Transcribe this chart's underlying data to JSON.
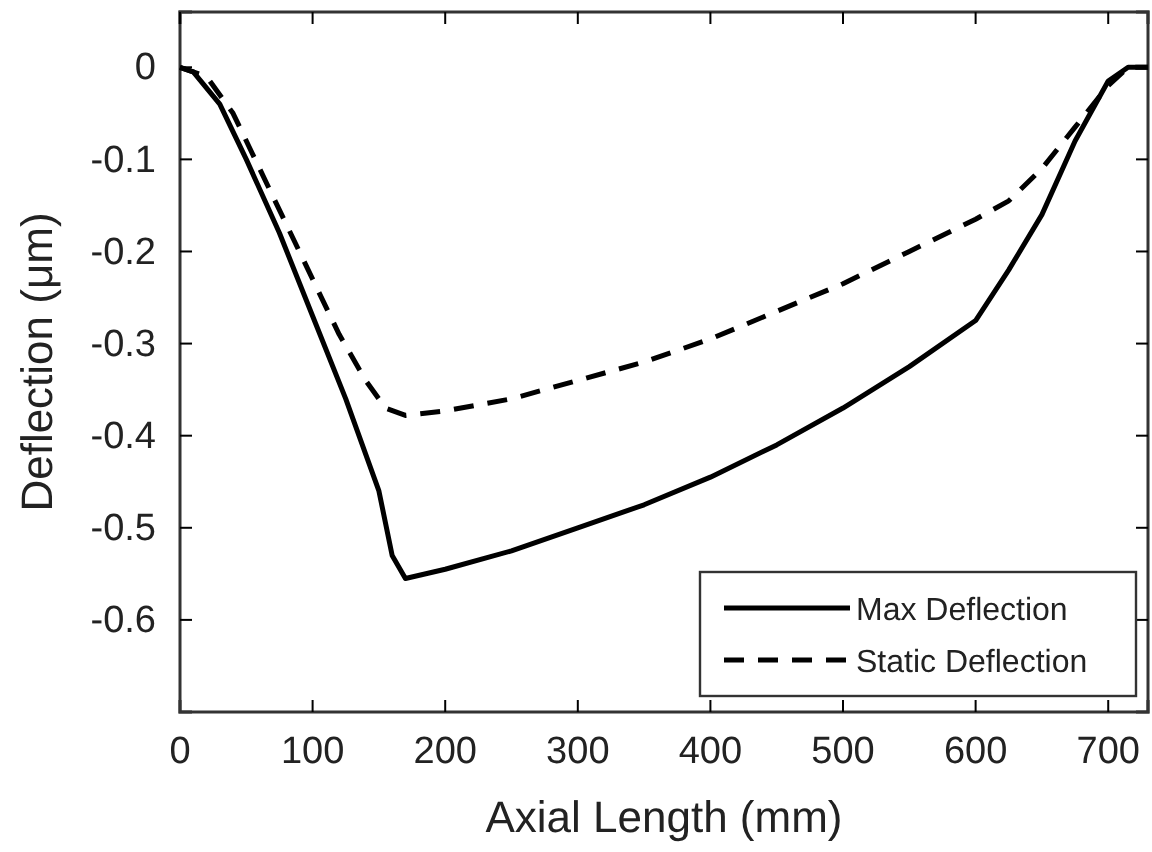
{
  "chart_data": {
    "type": "line",
    "xlabel": "Axial Length (mm)",
    "ylabel": "Deflection (μm)",
    "xlim": [
      0,
      730
    ],
    "ylim": [
      -0.7,
      0.06
    ],
    "xticks": [
      0,
      100,
      200,
      300,
      400,
      500,
      600,
      700
    ],
    "yticks": [
      0,
      -0.1,
      -0.2,
      -0.3,
      -0.4,
      -0.5,
      -0.6
    ],
    "grid": false,
    "legend": "bottom right",
    "marker": "none",
    "series": [
      {
        "name": "Max Deflection",
        "color": "#000000",
        "line_style": "solid",
        "x": [
          0,
          10,
          30,
          50,
          75,
          100,
          125,
          150,
          160,
          170,
          200,
          250,
          300,
          350,
          400,
          450,
          500,
          550,
          600,
          625,
          650,
          675,
          700,
          715,
          730
        ],
        "values": [
          0,
          -0.005,
          -0.04,
          -0.1,
          -0.18,
          -0.27,
          -0.36,
          -0.46,
          -0.53,
          -0.555,
          -0.545,
          -0.525,
          -0.5,
          -0.475,
          -0.445,
          -0.41,
          -0.37,
          -0.325,
          -0.275,
          -0.22,
          -0.16,
          -0.08,
          -0.015,
          0,
          0
        ]
      },
      {
        "name": "Static Deflection",
        "color": "#000000",
        "line_style": "dashed",
        "x": [
          0,
          20,
          40,
          60,
          80,
          100,
          120,
          140,
          155,
          170,
          200,
          250,
          300,
          350,
          400,
          450,
          500,
          550,
          600,
          625,
          650,
          675,
          700,
          715,
          730
        ],
        "values": [
          0,
          -0.01,
          -0.05,
          -0.11,
          -0.17,
          -0.23,
          -0.29,
          -0.34,
          -0.37,
          -0.378,
          -0.373,
          -0.36,
          -0.34,
          -0.32,
          -0.295,
          -0.265,
          -0.235,
          -0.2,
          -0.165,
          -0.145,
          -0.11,
          -0.065,
          -0.02,
          0,
          0
        ]
      }
    ]
  }
}
